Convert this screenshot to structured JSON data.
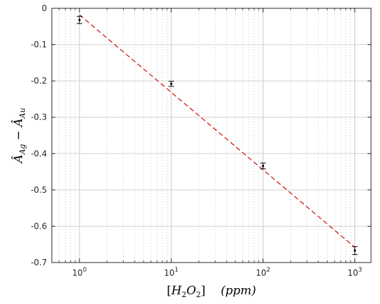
{
  "chart_data": {
    "type": "scatter",
    "title": "",
    "xlabel_tex": "[H2O2] (ppm)",
    "ylabel_tex": "Â_Ag − Â_Au",
    "x_scale": "log",
    "xlim": [
      0.5,
      1500
    ],
    "ylim": [
      -0.7,
      0
    ],
    "grid": true,
    "x_ticks": [
      {
        "value": 1,
        "base": "10",
        "exp": "0"
      },
      {
        "value": 10,
        "base": "10",
        "exp": "1"
      },
      {
        "value": 100,
        "base": "10",
        "exp": "2"
      },
      {
        "value": 1000,
        "base": "10",
        "exp": "3"
      }
    ],
    "y_ticks": [
      {
        "value": 0,
        "label": "0"
      },
      {
        "value": -0.1,
        "label": "-0.1"
      },
      {
        "value": -0.2,
        "label": "-0.2"
      },
      {
        "value": -0.3,
        "label": "-0.3"
      },
      {
        "value": -0.4,
        "label": "-0.4"
      },
      {
        "value": -0.5,
        "label": "-0.5"
      },
      {
        "value": -0.6,
        "label": "-0.6"
      },
      {
        "value": -0.7,
        "label": "-0.7"
      }
    ],
    "series": [
      {
        "kind": "points-with-errorbars",
        "color": "#000000",
        "points": [
          {
            "x": 1,
            "y": -0.032,
            "err": 0.01
          },
          {
            "x": 10,
            "y": -0.208,
            "err": 0.007
          },
          {
            "x": 100,
            "y": -0.434,
            "err": 0.008
          },
          {
            "x": 1000,
            "y": -0.667,
            "err": 0.011
          }
        ]
      },
      {
        "kind": "fit-line",
        "color": "#d62728",
        "dash": true,
        "x": [
          1,
          1000
        ],
        "y": [
          -0.018,
          -0.658
        ]
      }
    ]
  },
  "axis_text": {
    "x_open": "[",
    "x_H": "H",
    "x_2a": "2",
    "x_O": "O",
    "x_2b": "2",
    "x_close": "]",
    "x_unit": "(ppm)",
    "y_A1": "Â",
    "y_sub1": "Ag",
    "y_minus": " − ",
    "y_A2": "Â",
    "y_sub2": "Au"
  }
}
